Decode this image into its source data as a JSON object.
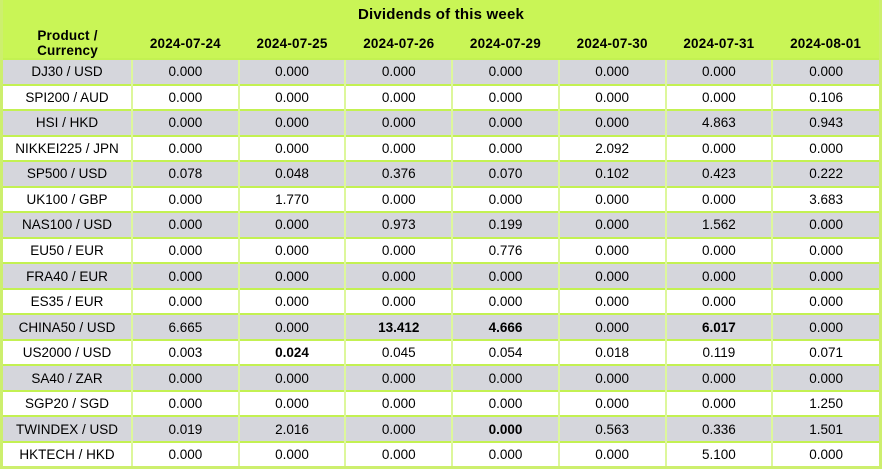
{
  "title": "Dividends of this week",
  "table": {
    "columns": [
      "Product / Currency",
      "2024-07-24",
      "2024-07-25",
      "2024-07-26",
      "2024-07-29",
      "2024-07-30",
      "2024-07-31",
      "2024-08-01"
    ],
    "rows": [
      {
        "product": "DJ30 / USD",
        "values": [
          "0.000",
          "0.000",
          "0.000",
          "0.000",
          "0.000",
          "0.000",
          "0.000"
        ],
        "bold": []
      },
      {
        "product": "SPI200 / AUD",
        "values": [
          "0.000",
          "0.000",
          "0.000",
          "0.000",
          "0.000",
          "0.000",
          "0.106"
        ],
        "bold": []
      },
      {
        "product": "HSI / HKD",
        "values": [
          "0.000",
          "0.000",
          "0.000",
          "0.000",
          "0.000",
          "4.863",
          "0.943"
        ],
        "bold": []
      },
      {
        "product": "NIKKEI225 / JPN",
        "values": [
          "0.000",
          "0.000",
          "0.000",
          "0.000",
          "2.092",
          "0.000",
          "0.000"
        ],
        "bold": []
      },
      {
        "product": "SP500 / USD",
        "values": [
          "0.078",
          "0.048",
          "0.376",
          "0.070",
          "0.102",
          "0.423",
          "0.222"
        ],
        "bold": []
      },
      {
        "product": "UK100 / GBP",
        "values": [
          "0.000",
          "1.770",
          "0.000",
          "0.000",
          "0.000",
          "0.000",
          "3.683"
        ],
        "bold": []
      },
      {
        "product": "NAS100 / USD",
        "values": [
          "0.000",
          "0.000",
          "0.973",
          "0.199",
          "0.000",
          "1.562",
          "0.000"
        ],
        "bold": []
      },
      {
        "product": "EU50 / EUR",
        "values": [
          "0.000",
          "0.000",
          "0.000",
          "0.776",
          "0.000",
          "0.000",
          "0.000"
        ],
        "bold": []
      },
      {
        "product": "FRA40 / EUR",
        "values": [
          "0.000",
          "0.000",
          "0.000",
          "0.000",
          "0.000",
          "0.000",
          "0.000"
        ],
        "bold": []
      },
      {
        "product": "ES35 / EUR",
        "values": [
          "0.000",
          "0.000",
          "0.000",
          "0.000",
          "0.000",
          "0.000",
          "0.000"
        ],
        "bold": []
      },
      {
        "product": "CHINA50 / USD",
        "values": [
          "6.665",
          "0.000",
          "13.412",
          "4.666",
          "0.000",
          "6.017",
          "0.000"
        ],
        "bold": [
          2,
          3,
          5
        ]
      },
      {
        "product": "US2000 / USD",
        "values": [
          "0.003",
          "0.024",
          "0.045",
          "0.054",
          "0.018",
          "0.119",
          "0.071"
        ],
        "bold": [
          1
        ]
      },
      {
        "product": "SA40 / ZAR",
        "values": [
          "0.000",
          "0.000",
          "0.000",
          "0.000",
          "0.000",
          "0.000",
          "0.000"
        ],
        "bold": []
      },
      {
        "product": "SGP20 / SGD",
        "values": [
          "0.000",
          "0.000",
          "0.000",
          "0.000",
          "0.000",
          "0.000",
          "1.250"
        ],
        "bold": []
      },
      {
        "product": "TWINDEX / USD",
        "values": [
          "0.019",
          "2.016",
          "0.000",
          "0.000",
          "0.563",
          "0.336",
          "1.501"
        ],
        "bold": [
          3
        ]
      },
      {
        "product": "HKTECH / HKD",
        "values": [
          "0.000",
          "0.000",
          "0.000",
          "0.000",
          "0.000",
          "5.100",
          "0.000"
        ],
        "bold": []
      }
    ]
  },
  "colors": {
    "header_bg": "#c9f556",
    "row_alt_bg": "#d5d6dc",
    "row_bg": "#ffffff",
    "horizontal_border": "#c3f152",
    "vertical_border": "#ddf79b",
    "outer_border": "#cdef6e",
    "text": "#000000"
  }
}
